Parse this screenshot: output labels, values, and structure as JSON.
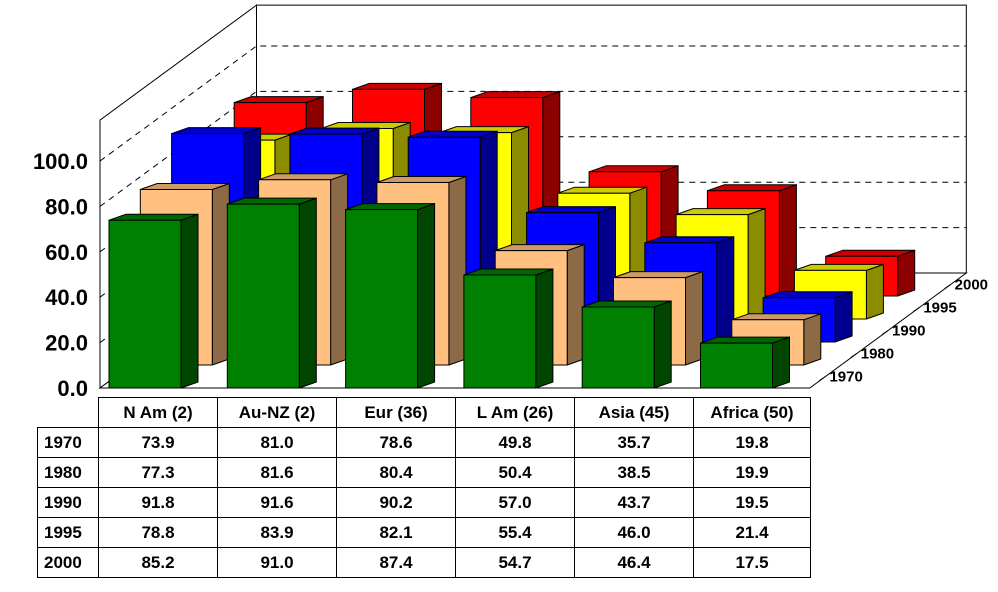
{
  "chart_data": {
    "type": "bar",
    "title": "",
    "xlabel": "",
    "ylabel": "",
    "ylim": [
      0,
      100
    ],
    "y_ticks": [
      "0.0",
      "20.0",
      "40.0",
      "60.0",
      "80.0",
      "100.0"
    ],
    "categories": [
      "N Am (2)",
      "Au-NZ (2)",
      "Eur (36)",
      "L Am (26)",
      "Asia (45)",
      "Africa (50)"
    ],
    "series": [
      {
        "name": "1970",
        "color": "#008000",
        "values": [
          73.9,
          81.0,
          78.6,
          49.8,
          35.7,
          19.8
        ]
      },
      {
        "name": "1980",
        "color": "#FFC080",
        "values": [
          77.3,
          81.6,
          80.4,
          50.4,
          38.5,
          19.9
        ]
      },
      {
        "name": "1990",
        "color": "#0000FF",
        "values": [
          91.8,
          91.6,
          90.2,
          57.0,
          43.7,
          19.5
        ]
      },
      {
        "name": "1995",
        "color": "#FFFF00",
        "values": [
          78.8,
          83.9,
          82.1,
          55.4,
          46.0,
          21.4
        ]
      },
      {
        "name": "2000",
        "color": "#FF0000",
        "values": [
          85.2,
          91.0,
          87.4,
          54.7,
          46.4,
          17.5
        ]
      }
    ],
    "grid": true,
    "legend": "data table below chart",
    "projection": "3d"
  },
  "table": {
    "rows": [
      {
        "label": "1970",
        "cells": [
          "73.9",
          "81.0",
          "78.6",
          "49.8",
          "35.7",
          "19.8"
        ]
      },
      {
        "label": "1980",
        "cells": [
          "77.3",
          "81.6",
          "80.4",
          "50.4",
          "38.5",
          "19.9"
        ]
      },
      {
        "label": "1990",
        "cells": [
          "91.8",
          "91.6",
          "90.2",
          "57.0",
          "43.7",
          "19.5"
        ]
      },
      {
        "label": "1995",
        "cells": [
          "78.8",
          "83.9",
          "82.1",
          "55.4",
          "46.0",
          "21.4"
        ]
      },
      {
        "label": "2000",
        "cells": [
          "85.2",
          "91.0",
          "87.4",
          "54.7",
          "46.4",
          "17.5"
        ]
      }
    ]
  }
}
